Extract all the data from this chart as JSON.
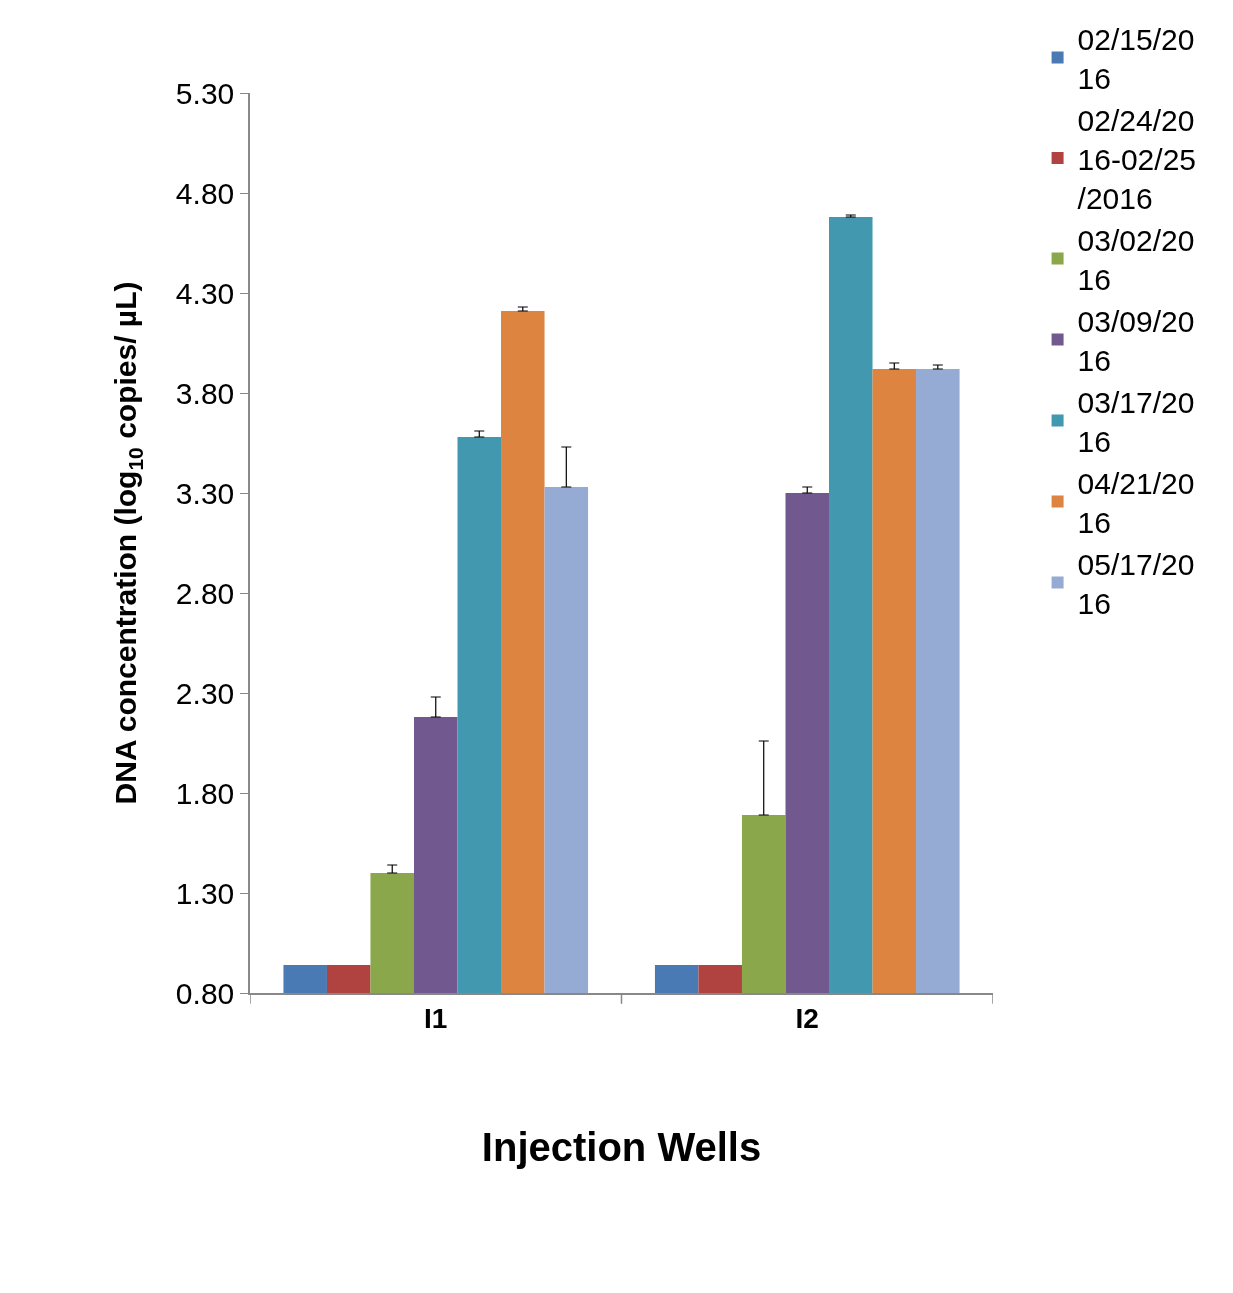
{
  "chart_data": {
    "type": "bar",
    "xlabel": "Injection Wells",
    "ylabel": "DNA concentration (log$_{10}$ copies/ µL)",
    "categories": [
      "I1",
      "I2"
    ],
    "ylim": [
      0.8,
      5.3
    ],
    "yticks": [
      {
        "value": 0.8,
        "label": "0.80"
      },
      {
        "value": 1.3,
        "label": "1.30"
      },
      {
        "value": 1.8,
        "label": "1.80"
      },
      {
        "value": 2.3,
        "label": "2.30"
      },
      {
        "value": 2.8,
        "label": "2.80"
      },
      {
        "value": 3.3,
        "label": "3.30"
      },
      {
        "value": 3.8,
        "label": "3.80"
      },
      {
        "value": 4.3,
        "label": "4.30"
      },
      {
        "value": 4.8,
        "label": "4.80"
      },
      {
        "value": 5.3,
        "label": "5.30"
      }
    ],
    "grid": false,
    "legend": "right",
    "series": [
      {
        "name": "02/15/2016",
        "color": "#4a7ab4",
        "values": [
          0.94,
          0.94
        ]
      },
      {
        "name": "02/24/2016-02/25/2016",
        "color": "#b0423f",
        "values": [
          0.94,
          0.94
        ]
      },
      {
        "name": "03/02/2016",
        "color": "#8aa74b",
        "values": [
          1.4,
          1.69
        ],
        "errors": [
          [
            1.4,
            1.44
          ],
          [
            1.69,
            2.06
          ]
        ]
      },
      {
        "name": "03/09/2016",
        "color": "#71588f",
        "values": [
          2.18,
          3.3
        ],
        "errors": [
          [
            2.18,
            2.28
          ],
          [
            3.3,
            3.33
          ]
        ]
      },
      {
        "name": "03/17/2016",
        "color": "#4298ae",
        "values": [
          3.58,
          4.68
        ],
        "errors": [
          [
            3.58,
            3.61
          ],
          [
            4.68,
            4.69
          ]
        ]
      },
      {
        "name": "04/21/2016",
        "color": "#dc8440",
        "values": [
          4.21,
          3.92
        ],
        "errors": [
          [
            4.21,
            4.23
          ],
          [
            3.92,
            3.95
          ]
        ]
      },
      {
        "name": "05/17/2016",
        "color": "#95abd3",
        "values": [
          3.33,
          3.92
        ],
        "errors": [
          [
            3.33,
            3.53
          ],
          [
            3.92,
            3.94
          ]
        ]
      }
    ]
  }
}
